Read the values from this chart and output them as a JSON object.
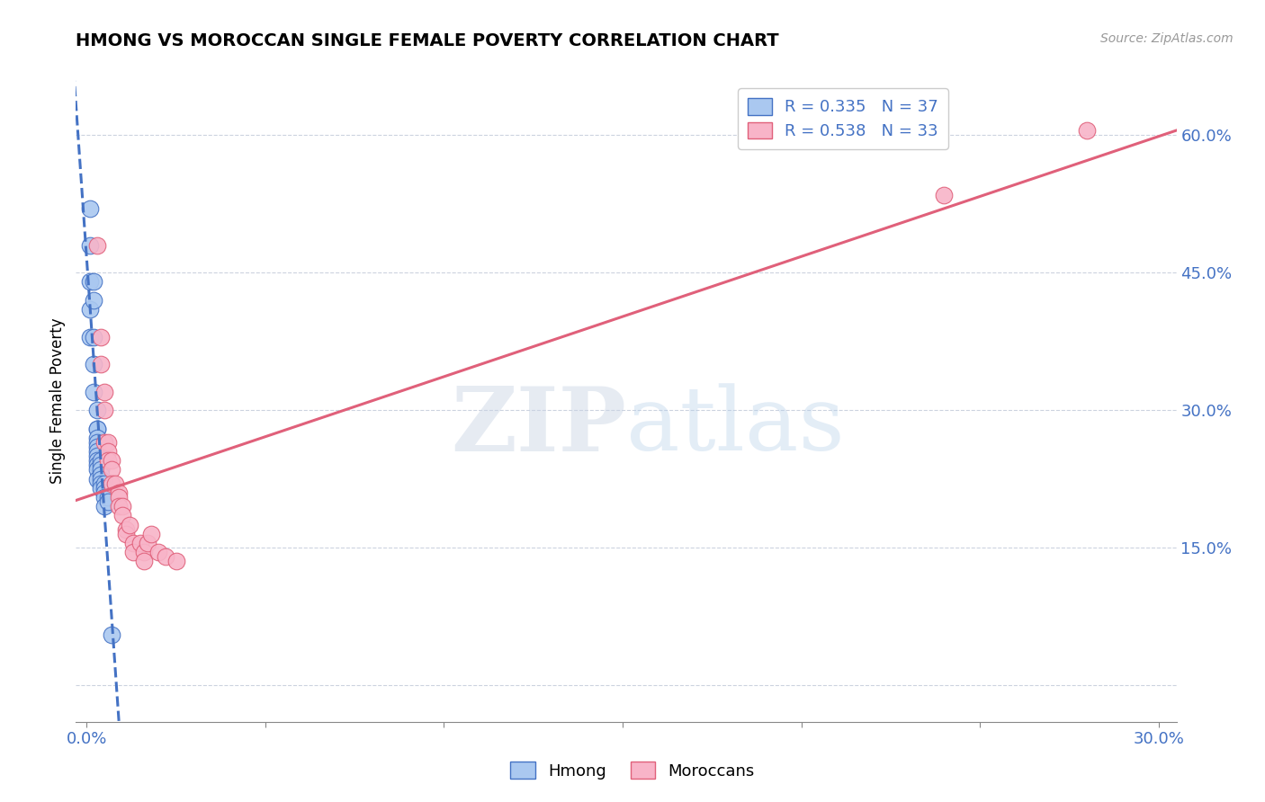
{
  "title": "HMONG VS MOROCCAN SINGLE FEMALE POVERTY CORRELATION CHART",
  "source": "Source: ZipAtlas.com",
  "ylabel": "Single Female Poverty",
  "xlim": [
    -0.003,
    0.305
  ],
  "ylim": [
    -0.04,
    0.66
  ],
  "hmong_R": 0.335,
  "hmong_N": 37,
  "moroccan_R": 0.538,
  "moroccan_N": 33,
  "hmong_fill_color": "#aac8f0",
  "hmong_edge_color": "#4472c4",
  "moroccan_fill_color": "#f8b4c8",
  "moroccan_edge_color": "#e0607a",
  "hmong_line_color": "#4472c4",
  "moroccan_line_color": "#e0607a",
  "axis_label_color": "#4472c4",
  "grid_color": "#c0c8d8",
  "watermark_color": "#d4dff0",
  "hmong_x": [
    0.001,
    0.001,
    0.001,
    0.001,
    0.001,
    0.002,
    0.002,
    0.002,
    0.002,
    0.002,
    0.003,
    0.003,
    0.003,
    0.003,
    0.003,
    0.003,
    0.003,
    0.003,
    0.003,
    0.003,
    0.003,
    0.003,
    0.004,
    0.004,
    0.004,
    0.004,
    0.004,
    0.004,
    0.004,
    0.005,
    0.005,
    0.005,
    0.005,
    0.005,
    0.006,
    0.006,
    0.007
  ],
  "hmong_y": [
    0.52,
    0.48,
    0.44,
    0.41,
    0.38,
    0.44,
    0.42,
    0.38,
    0.35,
    0.32,
    0.3,
    0.28,
    0.28,
    0.27,
    0.265,
    0.26,
    0.255,
    0.25,
    0.245,
    0.24,
    0.235,
    0.225,
    0.245,
    0.24,
    0.235,
    0.23,
    0.225,
    0.22,
    0.215,
    0.22,
    0.215,
    0.21,
    0.205,
    0.195,
    0.205,
    0.2,
    0.055
  ],
  "moroccan_x": [
    0.003,
    0.004,
    0.004,
    0.005,
    0.005,
    0.005,
    0.006,
    0.006,
    0.006,
    0.007,
    0.007,
    0.007,
    0.008,
    0.009,
    0.009,
    0.009,
    0.01,
    0.01,
    0.011,
    0.011,
    0.012,
    0.013,
    0.013,
    0.015,
    0.016,
    0.016,
    0.017,
    0.018,
    0.02,
    0.022,
    0.025,
    0.24,
    0.28
  ],
  "moroccan_y": [
    0.48,
    0.38,
    0.35,
    0.32,
    0.3,
    0.265,
    0.265,
    0.255,
    0.245,
    0.245,
    0.235,
    0.22,
    0.22,
    0.21,
    0.205,
    0.195,
    0.195,
    0.185,
    0.17,
    0.165,
    0.175,
    0.155,
    0.145,
    0.155,
    0.145,
    0.135,
    0.155,
    0.165,
    0.145,
    0.14,
    0.135,
    0.535,
    0.605
  ],
  "yticks": [
    0.0,
    0.15,
    0.3,
    0.45,
    0.6
  ],
  "ytick_labels": [
    "",
    "15.0%",
    "30.0%",
    "45.0%",
    "60.0%"
  ],
  "xticks": [
    0.0,
    0.05,
    0.1,
    0.15,
    0.2,
    0.25,
    0.3
  ],
  "xtick_labels": [
    "0.0%",
    "",
    "",
    "",
    "",
    "",
    "30.0%"
  ]
}
